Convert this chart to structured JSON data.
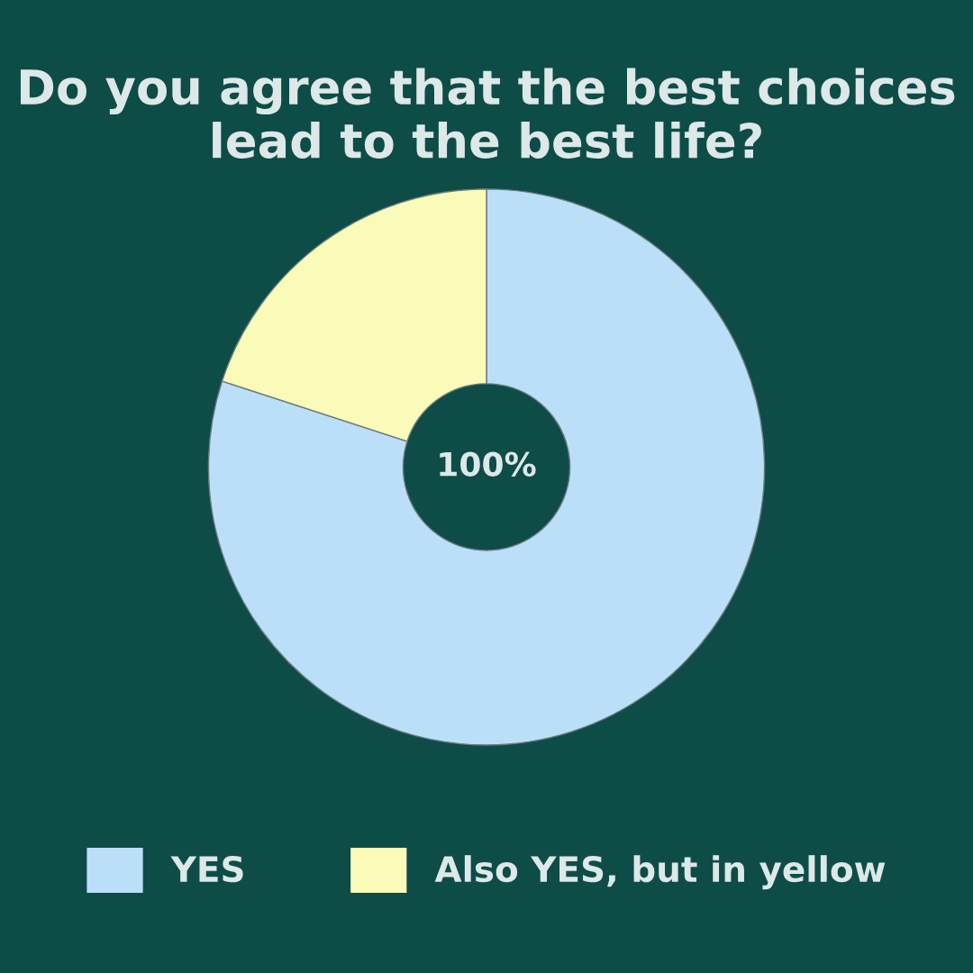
{
  "chart_data": {
    "type": "donut",
    "title": "Do you agree that the best choices lead to the best life?",
    "categories": [
      "YES",
      "Also YES, but in yellow"
    ],
    "values": [
      80,
      20
    ],
    "colors": [
      "#bbdff8",
      "#fafab9"
    ],
    "annotations": [
      "100%"
    ],
    "legend": "bottom"
  }
}
